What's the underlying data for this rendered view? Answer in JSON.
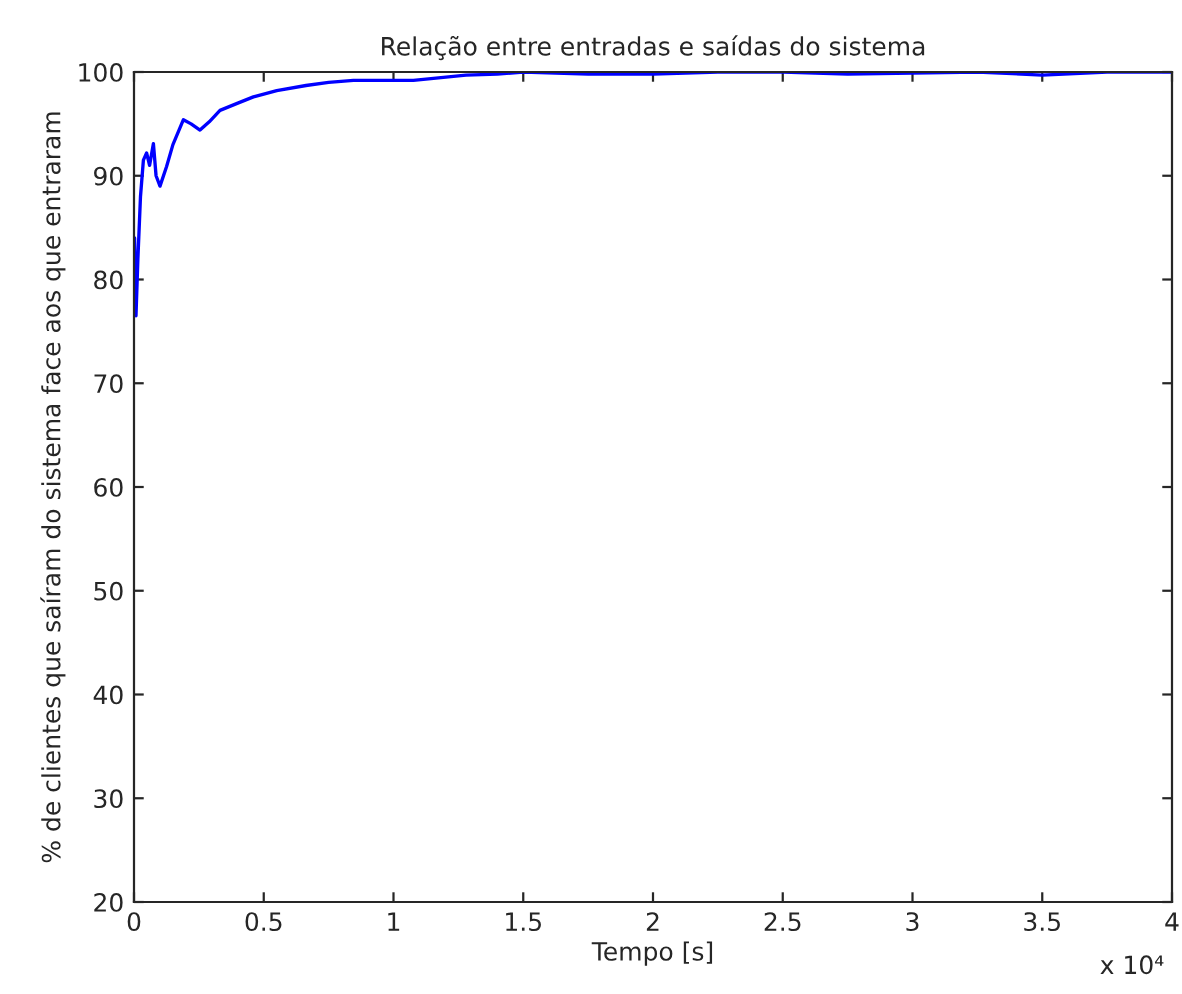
{
  "chart_data": {
    "type": "line",
    "title": "Relação entre entradas e saídas do sistema",
    "xlabel": "Tempo [s]",
    "ylabel": "% de clientes que saíram do sistema face aos que entraram",
    "annotations": [
      "x 10⁴"
    ],
    "series": [
      {
        "color": "#0000ff",
        "x": [
          0,
          0.0023,
          0.0077,
          0.015,
          0.025,
          0.0362,
          0.0486,
          0.06,
          0.0748,
          0.085,
          0.1002,
          0.1256,
          0.15,
          0.1904,
          0.22,
          0.2543,
          0.29,
          0.3314,
          0.4,
          0.4601,
          0.55,
          0.6628,
          0.75,
          0.8455,
          0.95,
          1.0767,
          1.2794,
          1.4,
          1.5,
          1.75,
          2.0,
          2.25,
          2.5,
          2.75,
          3.0,
          3.25,
          3.5,
          3.75,
          4.0
        ],
        "values": [
          83,
          84,
          76.5,
          82,
          88,
          91.5,
          92.2,
          91,
          93.1,
          90,
          89,
          90.9,
          93,
          95.4,
          95,
          94.4,
          95.2,
          96.3,
          97,
          97.6,
          98.2,
          98.7,
          99,
          99.2,
          99.2,
          99.2,
          99.7,
          99.8,
          100,
          99.8,
          99.8,
          100,
          100,
          99.8,
          99.9,
          100,
          99.7,
          100,
          100
        ]
      }
    ],
    "xlim": [
      0,
      4
    ],
    "xticks": [
      0,
      0.5,
      1,
      1.5,
      2,
      2.5,
      3,
      3.5,
      4
    ],
    "ylim": [
      20,
      100
    ],
    "yticks": [
      20,
      30,
      40,
      50,
      60,
      70,
      80,
      90,
      100
    ],
    "grid": false,
    "legend": false
  }
}
